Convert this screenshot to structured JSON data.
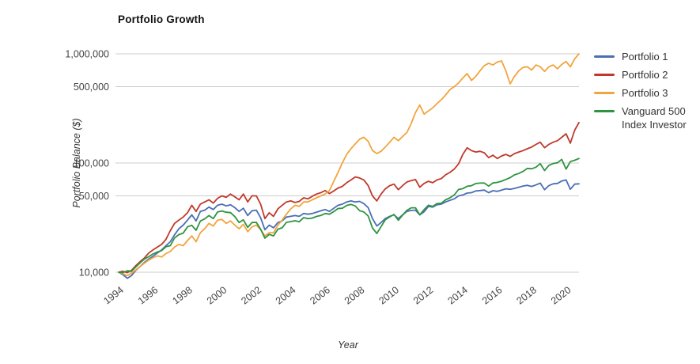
{
  "title": "Portfolio Growth",
  "chart_data": {
    "type": "line",
    "title": "Portfolio Growth",
    "xlabel": "Year",
    "ylabel": "Portfolio Balance ($)",
    "y_scale": "log",
    "grid": true,
    "legend_position": "right",
    "grid_color": "#cccccc",
    "tick_label_color": "#444444",
    "x_start": 1994.0,
    "x_step": 0.25,
    "x_ticks": [
      "1994",
      "1996",
      "1998",
      "2000",
      "2002",
      "2004",
      "2006",
      "2008",
      "2010",
      "2012",
      "2014",
      "2016",
      "2018",
      "2020"
    ],
    "y_ticks": [
      {
        "label": "1,000,000",
        "value": 1000000
      },
      {
        "label": "500,000",
        "value": 500000
      },
      {
        "label": "100,000",
        "value": 100000
      },
      {
        "label": "50,000",
        "value": 50000
      },
      {
        "label": "10,000",
        "value": 10000
      }
    ],
    "ylim": [
      8800,
      1050000
    ],
    "series": [
      {
        "name": "Portfolio 1",
        "color": "#4a6fb5",
        "values": [
          10000,
          9500,
          8800,
          9300,
          10400,
          11300,
          12300,
          13200,
          14000,
          15000,
          16000,
          17500,
          19000,
          22000,
          25000,
          27000,
          30000,
          33500,
          29500,
          36000,
          37000,
          39500,
          37500,
          41000,
          42000,
          40500,
          41500,
          39000,
          36000,
          38500,
          33000,
          36500,
          37000,
          31500,
          24500,
          27000,
          25500,
          28500,
          29500,
          32000,
          32500,
          33000,
          32500,
          34500,
          34000,
          34500,
          35500,
          36500,
          37500,
          36000,
          38500,
          41000,
          42000,
          44000,
          45000,
          44000,
          44500,
          42500,
          39000,
          31000,
          26500,
          28500,
          31000,
          32500,
          33500,
          31000,
          33500,
          36000,
          36800,
          37000,
          33500,
          35800,
          40000,
          39500,
          41500,
          42000,
          44000,
          45500,
          47000,
          50000,
          51000,
          53000,
          53500,
          55500,
          56000,
          56500,
          53500,
          55800,
          55000,
          56500,
          58000,
          57500,
          58500,
          60000,
          61500,
          62500,
          61000,
          63000,
          65500,
          57000,
          62000,
          64500,
          65000,
          68500,
          70000,
          57500,
          64000,
          64500
        ]
      },
      {
        "name": "Portfolio 2",
        "color": "#c0392b",
        "values": [
          10000,
          10200,
          9900,
          10400,
          11500,
          12500,
          13500,
          15000,
          16000,
          17000,
          18000,
          20000,
          24000,
          28000,
          30000,
          32000,
          35000,
          41000,
          36000,
          42000,
          44000,
          46000,
          43000,
          47500,
          50000,
          48500,
          52000,
          49000,
          46000,
          52000,
          44000,
          50000,
          50000,
          42000,
          31000,
          35000,
          32500,
          38000,
          41000,
          44000,
          45000,
          43500,
          44500,
          48000,
          47000,
          49500,
          52000,
          53500,
          56000,
          52500,
          55500,
          59000,
          61000,
          66000,
          70000,
          74500,
          73000,
          70000,
          62000,
          50000,
          45000,
          52000,
          58000,
          62000,
          64000,
          57000,
          62000,
          67000,
          69000,
          70500,
          60000,
          65000,
          68000,
          66000,
          70000,
          72000,
          78000,
          82000,
          88000,
          98000,
          120000,
          138000,
          130000,
          126000,
          128000,
          124000,
          112000,
          118000,
          110000,
          116000,
          120000,
          115000,
          122000,
          126000,
          130000,
          135000,
          140000,
          148000,
          155000,
          138000,
          148000,
          155000,
          160000,
          172000,
          185000,
          152000,
          200000,
          235000
        ]
      },
      {
        "name": "Portfolio 3",
        "color": "#f2a43d",
        "values": [
          10000,
          9700,
          9300,
          9800,
          10500,
          11300,
          12100,
          12900,
          13600,
          14100,
          13800,
          14800,
          15500,
          17000,
          18000,
          17500,
          19500,
          21500,
          19000,
          23000,
          25000,
          28000,
          26500,
          30000,
          30500,
          28000,
          29500,
          27000,
          25000,
          27500,
          23500,
          26000,
          27000,
          24500,
          21500,
          23000,
          23000,
          27000,
          30000,
          34000,
          38000,
          41000,
          40000,
          44000,
          44000,
          46000,
          48000,
          50000,
          52000,
          56000,
          68000,
          82000,
          100000,
          120000,
          135000,
          150000,
          165000,
          172000,
          158000,
          130000,
          122000,
          128000,
          140000,
          155000,
          172000,
          160000,
          175000,
          190000,
          230000,
          290000,
          340000,
          280000,
          300000,
          320000,
          350000,
          380000,
          420000,
          470000,
          500000,
          540000,
          600000,
          660000,
          570000,
          620000,
          700000,
          780000,
          820000,
          790000,
          840000,
          860000,
          700000,
          530000,
          620000,
          700000,
          750000,
          760000,
          710000,
          790000,
          760000,
          690000,
          760000,
          790000,
          730000,
          800000,
          850000,
          760000,
          900000,
          1000000
        ]
      },
      {
        "name": "Vanguard 500 Index Investor",
        "color": "#2e9440",
        "values": [
          10000,
          9900,
          10300,
          10200,
          11200,
          12200,
          13200,
          13900,
          14700,
          15300,
          15800,
          17100,
          17500,
          20600,
          22100,
          22800,
          26000,
          26900,
          24200,
          29400,
          30800,
          33000,
          31000,
          35600,
          36400,
          35400,
          35100,
          32300,
          28500,
          30200,
          25700,
          28500,
          28600,
          24800,
          20500,
          22200,
          21500,
          24800,
          25500,
          28600,
          29100,
          29600,
          29000,
          31600,
          30900,
          31300,
          32400,
          33100,
          34500,
          34000,
          35900,
          38300,
          38500,
          40900,
          41800,
          40400,
          36600,
          35600,
          32700,
          25400,
          22600,
          26200,
          30300,
          32100,
          33800,
          29900,
          33300,
          36800,
          38900,
          38900,
          33500,
          37400,
          41000,
          40000,
          42500,
          42800,
          46000,
          48000,
          51000,
          57200,
          58200,
          61200,
          61900,
          64900,
          65500,
          65600,
          61400,
          65700,
          66500,
          68100,
          70700,
          73400,
          77800,
          80200,
          83800,
          89300,
          88600,
          91600,
          98600,
          85300,
          95000,
          99000,
          100500,
          108000,
          88000,
          103000,
          106000,
          110000
        ]
      }
    ]
  }
}
